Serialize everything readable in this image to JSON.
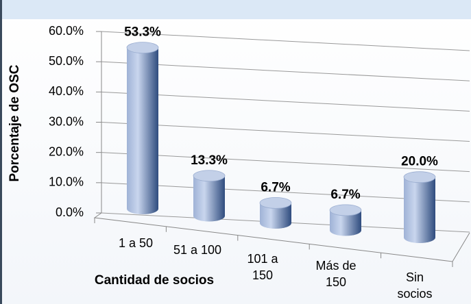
{
  "chart_data": {
    "type": "bar",
    "categories": [
      "1 a 50",
      "51 a 100",
      "101 a 150",
      "Más de 150",
      "Sin socios"
    ],
    "values": [
      53.3,
      13.3,
      6.7,
      6.7,
      20.0
    ],
    "value_labels": [
      "53.3%",
      "13.3%",
      "6.7%",
      "6.7%",
      "20.0%"
    ],
    "color": "#5a76a8",
    "ylim": [
      0,
      60
    ],
    "yticks": [
      {
        "value": 0,
        "label": "0.0%"
      },
      {
        "value": 10,
        "label": "10.0%"
      },
      {
        "value": 20,
        "label": "20.0%"
      },
      {
        "value": 30,
        "label": "30.0%"
      },
      {
        "value": 40,
        "label": "40.0%"
      },
      {
        "value": 50,
        "label": "50.0%"
      },
      {
        "value": 60,
        "label": "60.0%"
      }
    ],
    "grid": true,
    "ylabel": "Porcentaje de OSC",
    "xlabel": "Cantidad de socios"
  }
}
